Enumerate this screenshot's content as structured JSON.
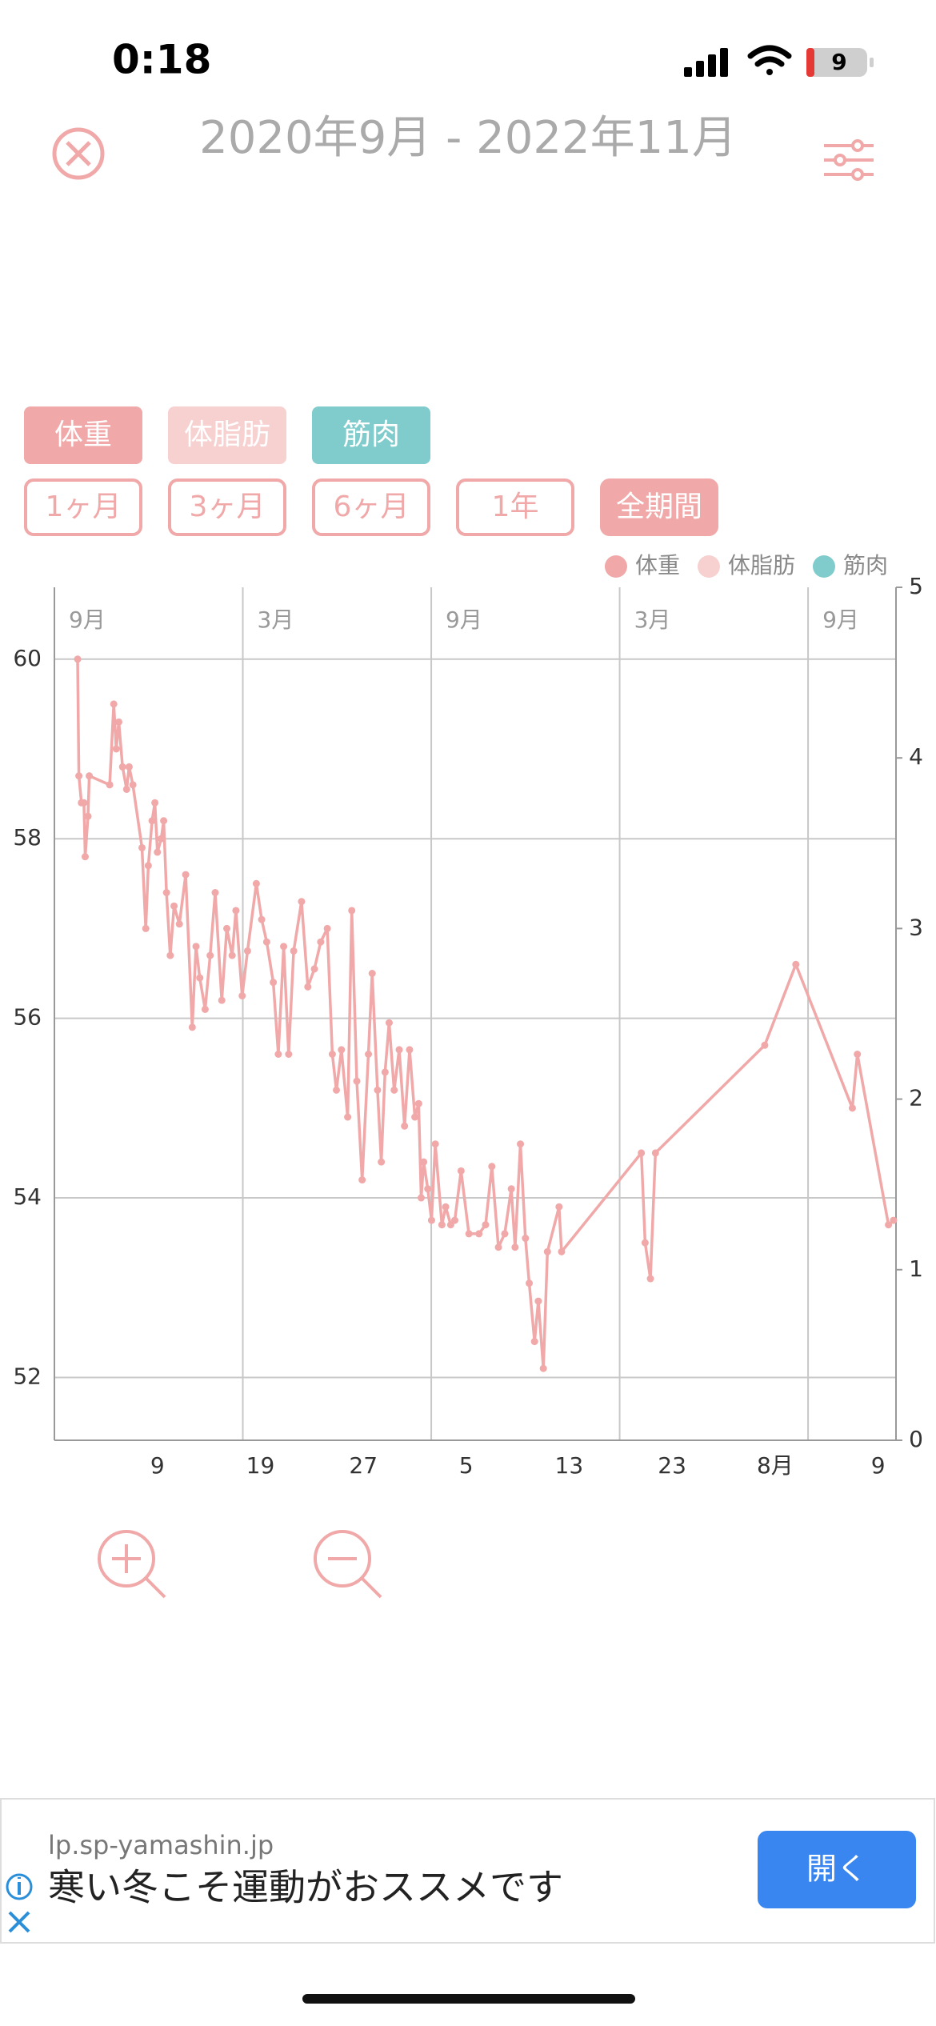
{
  "status": {
    "time": "0:18",
    "battery": "9"
  },
  "header": {
    "title": "2020年9月 - 2022年11月"
  },
  "toggles": [
    {
      "label": "体重",
      "color": "#f0a8a8"
    },
    {
      "label": "体脂肪",
      "color": "#f7d0d0"
    },
    {
      "label": "筋肉",
      "color": "#80cccc"
    }
  ],
  "periods": [
    "1ヶ月",
    "3ヶ月",
    "6ヶ月",
    "1年",
    "全期間"
  ],
  "chart_data": {
    "type": "line",
    "legend": [
      {
        "name": "体重",
        "color": "#f0a8a8"
      },
      {
        "name": "体脂肪",
        "color": "#f7d0d0"
      },
      {
        "name": "筋肉",
        "color": "#80cccc"
      }
    ],
    "x": [
      0.74,
      0.78,
      0.86,
      0.94,
      0.98,
      1.07,
      1.11,
      1.76,
      1.89,
      1.97,
      2.05,
      2.17,
      2.3,
      2.38,
      2.5,
      2.79,
      2.91,
      2.99,
      3.11,
      3.2,
      3.28,
      3.4,
      3.48,
      3.57,
      3.69,
      3.81,
      3.98,
      4.18,
      4.39,
      4.51,
      4.63,
      4.8,
      4.96,
      5.12,
      5.33,
      5.49,
      5.66,
      5.78,
      5.98,
      6.15,
      6.43,
      6.6,
      6.76,
      6.97,
      7.13,
      7.3,
      7.46,
      7.62,
      7.87,
      8.07,
      8.28,
      8.48,
      8.69,
      8.85,
      8.98,
      9.14,
      9.34,
      9.47,
      9.63,
      9.8,
      10.0,
      10.12,
      10.29,
      10.41,
      10.53,
      10.66,
      10.82,
      10.98,
      11.15,
      11.31,
      11.48,
      11.6,
      11.68,
      11.76,
      11.89,
      12.01,
      12.13,
      12.34,
      12.46,
      12.62,
      12.75,
      12.95,
      13.2,
      13.52,
      13.73,
      13.93,
      14.14,
      14.34,
      14.55,
      14.67,
      14.84,
      15.0,
      15.12,
      15.29,
      15.41,
      15.57,
      15.7,
      16.07,
      16.15,
      18.69,
      18.81,
      18.98,
      19.14,
      22.62,
      23.61,
      25.41,
      25.57,
      26.56,
      26.72
    ],
    "series": [
      {
        "name": "体重",
        "color": "#f0a8a8",
        "values": [
          60.0,
          58.7,
          58.4,
          58.4,
          57.8,
          58.25,
          58.7,
          58.6,
          59.5,
          59.0,
          59.3,
          58.8,
          58.55,
          58.8,
          58.6,
          57.9,
          57.0,
          57.7,
          58.2,
          58.4,
          57.85,
          58.0,
          58.2,
          57.4,
          56.7,
          57.25,
          57.05,
          57.6,
          55.9,
          56.8,
          56.45,
          56.1,
          56.7,
          57.4,
          56.2,
          57.0,
          56.7,
          57.2,
          56.25,
          56.75,
          57.5,
          57.1,
          56.85,
          56.4,
          55.6,
          56.8,
          55.6,
          56.75,
          57.3,
          56.35,
          56.55,
          56.85,
          57.0,
          55.6,
          55.2,
          55.65,
          54.9,
          57.2,
          55.3,
          54.2,
          55.6,
          56.5,
          55.2,
          54.4,
          55.4,
          55.95,
          55.2,
          55.65,
          54.8,
          55.65,
          54.9,
          55.05,
          54.0,
          54.4,
          54.1,
          53.75,
          54.6,
          53.7,
          53.9,
          53.7,
          53.75,
          54.3,
          53.6,
          53.6,
          53.7,
          54.35,
          53.45,
          53.6,
          54.1,
          53.45,
          54.6,
          53.55,
          53.05,
          52.4,
          52.85,
          52.1,
          53.4,
          53.9,
          53.4,
          54.5,
          53.5,
          53.1,
          54.5,
          55.7,
          56.6,
          55.0,
          55.6,
          53.7,
          53.75
        ]
      }
    ],
    "xlim": [
      0,
      26.8
    ],
    "xticks": [
      {
        "value": 3.28,
        "label": "9"
      },
      {
        "value": 6.56,
        "label": "19"
      },
      {
        "value": 9.84,
        "label": "27"
      },
      {
        "value": 13.11,
        "label": "5"
      },
      {
        "value": 16.39,
        "label": "13"
      },
      {
        "value": 19.67,
        "label": "23"
      },
      {
        "value": 22.95,
        "label": "8月"
      },
      {
        "value": 26.23,
        "label": "9"
      }
    ],
    "top_xticks": [
      {
        "value": 0,
        "label": "9月"
      },
      {
        "value": 6,
        "label": "3月"
      },
      {
        "value": 12,
        "label": "9月"
      },
      {
        "value": 18,
        "label": "3月"
      },
      {
        "value": 24,
        "label": "9月"
      }
    ],
    "ylim": [
      51.3,
      60.8
    ],
    "yticks": [
      52,
      54,
      56,
      58,
      60
    ],
    "y2lim": [
      0,
      5
    ],
    "y2ticks": [
      0,
      1,
      2,
      3,
      4,
      5
    ],
    "grid": true
  },
  "ad": {
    "domain": "lp.sp-yamashin.jp",
    "text": "寒い冬こそ運動がおススメです",
    "button": "開く"
  }
}
